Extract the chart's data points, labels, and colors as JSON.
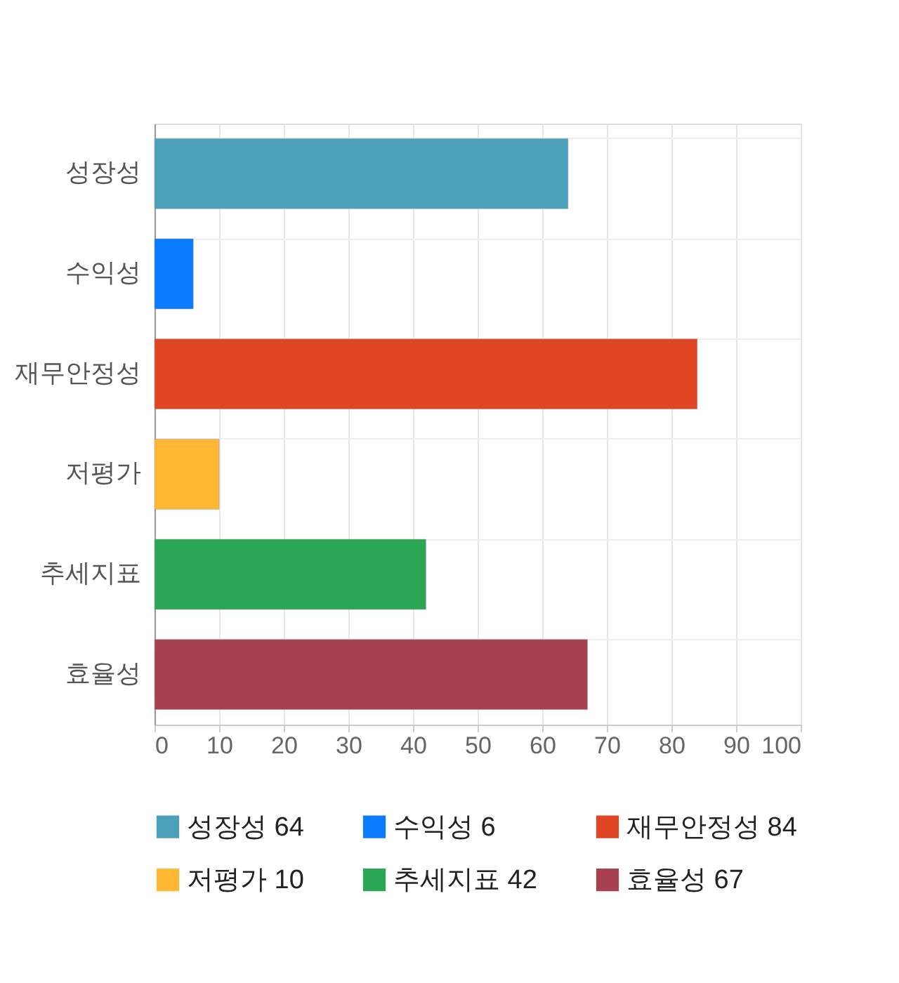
{
  "chart_data": {
    "type": "bar",
    "orientation": "horizontal",
    "stacked": true,
    "categories": [
      "성장성",
      "수익성",
      "재무안정성",
      "저평가",
      "추세지표",
      "효율성"
    ],
    "series": [
      {
        "name": "성장성 64",
        "color": "#4aa0b9",
        "values": [
          64,
          null,
          null,
          null,
          null,
          null
        ]
      },
      {
        "name": "수익성 6",
        "color": "#0b7bff",
        "values": [
          null,
          6,
          null,
          null,
          null,
          null
        ]
      },
      {
        "name": "재무안정성 84",
        "color": "#e04524",
        "values": [
          null,
          null,
          84,
          null,
          null,
          null
        ]
      },
      {
        "name": "저평가 10",
        "color": "#ffb734",
        "values": [
          null,
          null,
          null,
          10,
          null,
          null
        ]
      },
      {
        "name": "추세지표 42",
        "color": "#2aa655",
        "values": [
          null,
          null,
          null,
          null,
          42,
          null
        ]
      },
      {
        "name": "효율성 67",
        "color": "#a7404f",
        "values": [
          null,
          null,
          null,
          null,
          null,
          67
        ]
      }
    ],
    "xlim": [
      0,
      100
    ],
    "xticks": [
      0,
      10,
      20,
      30,
      40,
      50,
      60,
      70,
      80,
      90,
      100
    ],
    "grid": true,
    "legend": "bottom"
  }
}
